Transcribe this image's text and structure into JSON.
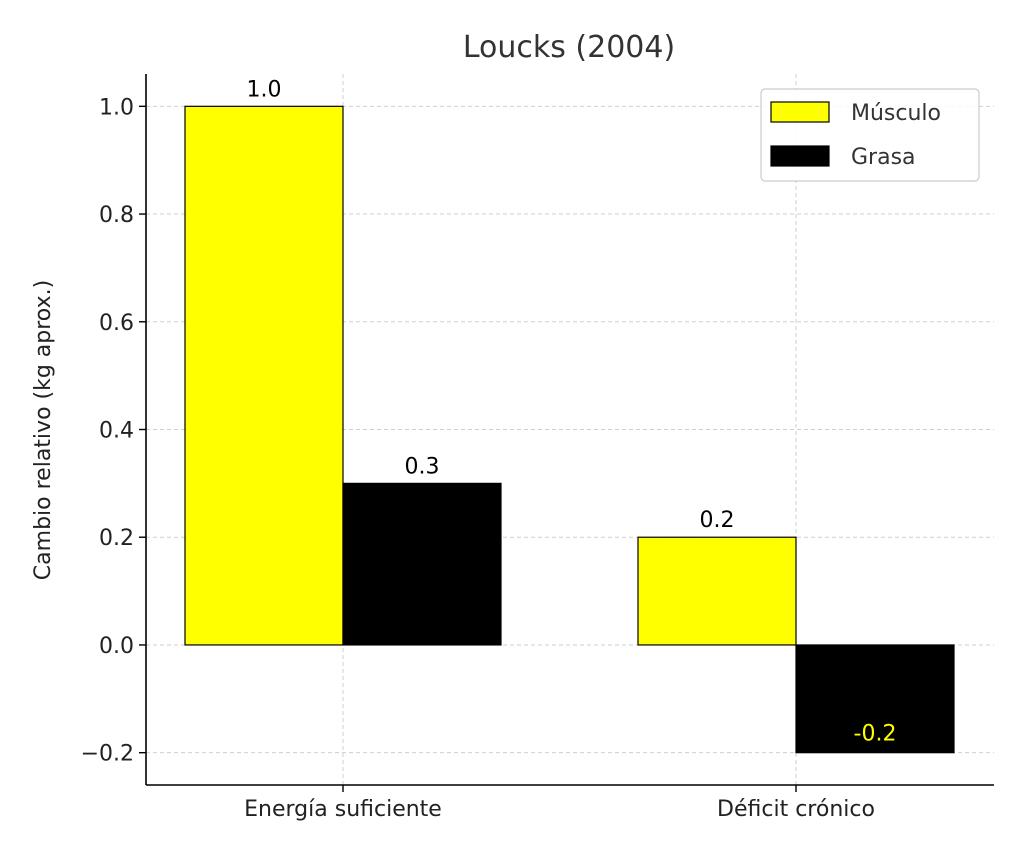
{
  "chart_data": {
    "type": "bar",
    "title": "Loucks (2004)",
    "xlabel": "",
    "ylabel": "Cambio relativo (kg aprox.)",
    "categories": [
      "Energía suficiente",
      "Déficit crónico"
    ],
    "series": [
      {
        "name": "Músculo",
        "color": "#ffff00",
        "values": [
          1.0,
          0.2
        ],
        "labels": [
          "1.0",
          "0.2"
        ],
        "label_color": "#000000"
      },
      {
        "name": "Grasa",
        "color": "#000000",
        "values": [
          0.3,
          -0.2
        ],
        "labels": [
          "0.3",
          "-0.2"
        ],
        "label_color": "#000000",
        "negative_label_color": "#ffff00"
      }
    ],
    "ylim": [
      -0.26,
      1.06
    ],
    "yticks": [
      -0.2,
      0.0,
      0.2,
      0.4,
      0.6,
      0.8,
      1.0
    ],
    "ytick_labels": [
      "−0.2",
      "0.0",
      "0.2",
      "0.4",
      "0.6",
      "0.8",
      "1.0"
    ],
    "grid": true,
    "legend_position": "top-right"
  }
}
